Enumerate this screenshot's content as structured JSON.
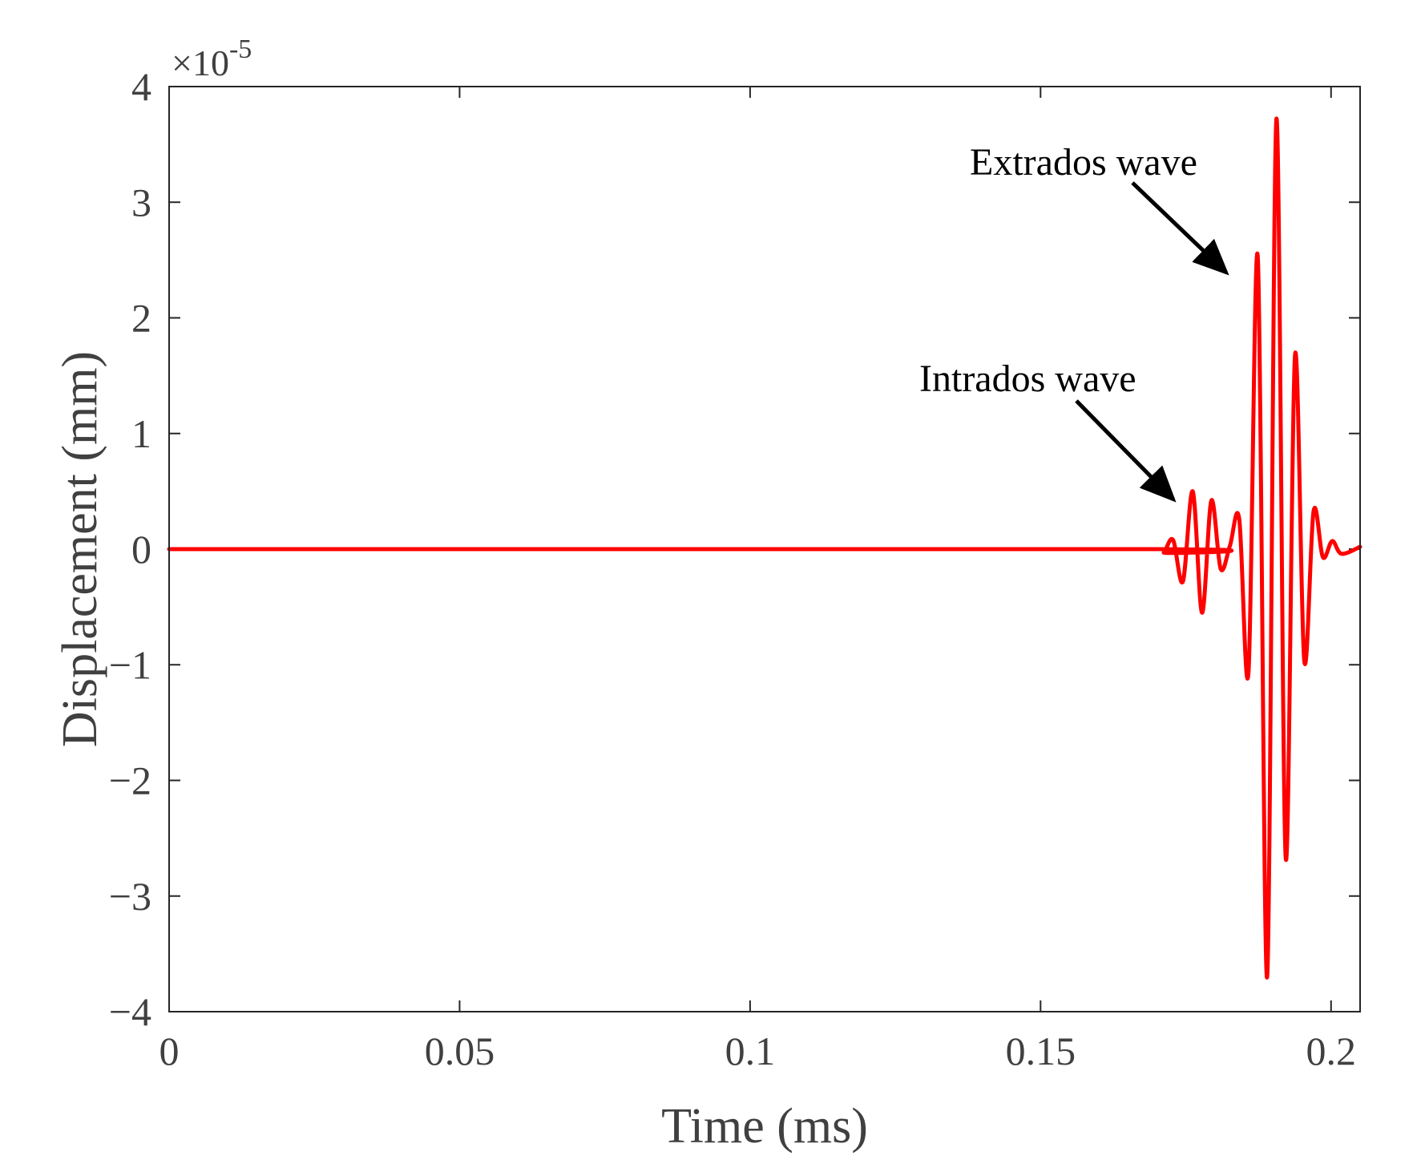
{
  "chart_data": {
    "type": "line",
    "title": "",
    "xlabel": "Time (ms)",
    "ylabel": "Displacement (mm)",
    "xlim": [
      0,
      0.205
    ],
    "ylim": [
      -4,
      4
    ],
    "y_scale_factor": "×10",
    "y_scale_exponent": "-5",
    "grid": false,
    "x_ticks": [
      0,
      0.05,
      0.1,
      0.15,
      0.2
    ],
    "x_tick_labels": [
      "0",
      "0.05",
      "0.1",
      "0.15",
      "0.2"
    ],
    "y_ticks": [
      -4,
      -3,
      -2,
      -1,
      0,
      1,
      2,
      3,
      4
    ],
    "y_tick_labels": [
      "−4",
      "−3",
      "−2",
      "−1",
      "0",
      "1",
      "2",
      "3",
      "4"
    ],
    "series": [
      {
        "name": "Displacement",
        "color": "#ff0000",
        "x": [
          0,
          0.17,
          0.1712,
          0.1728,
          0.1745,
          0.1762,
          0.1778,
          0.1794,
          0.181,
          0.1826,
          0.1842,
          0.1858,
          0.1874,
          0.189,
          0.1906,
          0.1922,
          0.1938,
          0.1954,
          0.197,
          0.1986,
          0.2002,
          0.2018,
          0.205
        ],
        "values": [
          0,
          0,
          -0.03,
          0.08,
          -0.28,
          0.5,
          -0.55,
          0.42,
          -0.17,
          0.03,
          0.26,
          -1.06,
          2.52,
          -3.7,
          3.72,
          -2.67,
          1.68,
          -0.97,
          0.33,
          -0.07,
          0.07,
          -0.04,
          0.02
        ]
      }
    ],
    "annotations": [
      {
        "text": "Extrados wave",
        "points_to": {
          "x": 0.1838,
          "y": 2.35
        }
      },
      {
        "text": "Intrados wave",
        "points_to": {
          "x": 0.1745,
          "y": 0.38
        }
      }
    ]
  }
}
